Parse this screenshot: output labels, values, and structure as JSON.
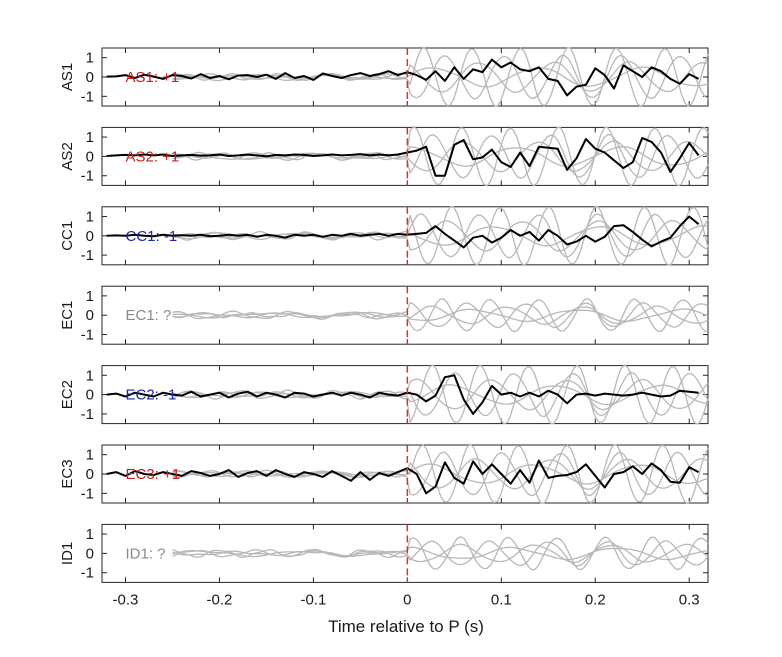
{
  "chart_data": {
    "type": "line",
    "xlabel": "Time relative to P (s)",
    "xlim": [
      -0.325,
      0.32
    ],
    "xticks": [
      -0.3,
      -0.2,
      -0.1,
      0,
      0.1,
      0.2,
      0.3
    ],
    "xtick_labels": [
      "-0.3",
      "-0.2",
      "-0.1",
      "0",
      "0.1",
      "0.2",
      "0.3"
    ],
    "ylim": [
      -1.5,
      1.5
    ],
    "yticks": [
      1,
      0,
      -1
    ],
    "ytick_labels": [
      "1",
      "0",
      "-1"
    ],
    "p_marker_x": 0,
    "colors": {
      "main": "#000000",
      "background": "#b8b8b8",
      "marker": "#e0302a",
      "positive": "#c81e1e",
      "negative": "#1e28a0",
      "unknown": "#8a8a8a"
    },
    "panels": [
      {
        "name": "AS1",
        "ylabel": "AS1",
        "annotation": "AS1: +1",
        "polarity": "positive",
        "x": [
          -0.32,
          -0.31,
          -0.3,
          -0.29,
          -0.28,
          -0.27,
          -0.26,
          -0.25,
          -0.24,
          -0.23,
          -0.22,
          -0.21,
          -0.2,
          -0.19,
          -0.18,
          -0.17,
          -0.16,
          -0.15,
          -0.14,
          -0.13,
          -0.12,
          -0.11,
          -0.1,
          -0.09,
          -0.08,
          -0.07,
          -0.06,
          -0.05,
          -0.04,
          -0.03,
          -0.02,
          -0.01,
          0,
          0.01,
          0.02,
          0.03,
          0.04,
          0.05,
          0.06,
          0.07,
          0.08,
          0.09,
          0.1,
          0.11,
          0.12,
          0.13,
          0.14,
          0.15,
          0.16,
          0.17,
          0.18,
          0.19,
          0.2,
          0.21,
          0.22,
          0.23,
          0.24,
          0.25,
          0.26,
          0.27,
          0.28,
          0.29,
          0.3,
          0.31
        ],
        "y": [
          0.02,
          0.03,
          0.1,
          -0.05,
          0.12,
          0.02,
          -0.1,
          0.1,
          0.05,
          -0.08,
          0.15,
          -0.05,
          0.05,
          -0.12,
          0.08,
          0.1,
          0.0,
          0.12,
          -0.1,
          0.2,
          -0.05,
          0.05,
          -0.15,
          0.18,
          0.05,
          -0.05,
          0.1,
          0.2,
          0.05,
          0.15,
          0.3,
          0.1,
          0.25,
          0.1,
          -0.15,
          0.3,
          -0.2,
          0.5,
          -0.1,
          0.4,
          0.25,
          0.9,
          0.5,
          0.75,
          0.4,
          0.3,
          0.5,
          -0.1,
          -0.2,
          -0.95,
          -0.5,
          -0.4,
          0.45,
          0.1,
          -0.6,
          0.6,
          0.3,
          0.0,
          0.5,
          0.3,
          -0.1,
          -0.35,
          0.15,
          -0.1
        ]
      },
      {
        "name": "AS2",
        "ylabel": "AS2",
        "annotation": "AS2: +1",
        "polarity": "positive",
        "x": [
          -0.32,
          -0.31,
          -0.3,
          -0.29,
          -0.28,
          -0.27,
          -0.26,
          -0.25,
          -0.24,
          -0.23,
          -0.22,
          -0.21,
          -0.2,
          -0.19,
          -0.18,
          -0.17,
          -0.16,
          -0.15,
          -0.14,
          -0.13,
          -0.12,
          -0.11,
          -0.1,
          -0.09,
          -0.08,
          -0.07,
          -0.06,
          -0.05,
          -0.04,
          -0.03,
          -0.02,
          -0.01,
          0,
          0.01,
          0.02,
          0.03,
          0.04,
          0.05,
          0.06,
          0.07,
          0.08,
          0.09,
          0.1,
          0.11,
          0.12,
          0.13,
          0.14,
          0.15,
          0.16,
          0.17,
          0.18,
          0.19,
          0.2,
          0.21,
          0.22,
          0.23,
          0.24,
          0.25,
          0.26,
          0.27,
          0.28,
          0.29,
          0.3,
          0.31
        ],
        "y": [
          0.02,
          0.05,
          0.08,
          0.05,
          0.1,
          0.05,
          0.1,
          0.02,
          0.05,
          0.08,
          0.03,
          0.05,
          0.1,
          0.02,
          0.05,
          0.1,
          0.05,
          0.0,
          0.08,
          0.05,
          0.1,
          0.08,
          0.02,
          0.05,
          0.1,
          0.05,
          0.08,
          0.12,
          0.05,
          0.1,
          0.05,
          0.1,
          0.2,
          0.3,
          0.5,
          -1.0,
          -1.0,
          0.6,
          0.85,
          -0.15,
          -0.05,
          0.35,
          -0.3,
          -0.55,
          0.2,
          -0.5,
          0.5,
          0.45,
          0.4,
          -0.7,
          -0.1,
          0.9,
          0.4,
          0.2,
          -0.2,
          -0.6,
          -0.3,
          0.95,
          0.75,
          0.2,
          -0.8,
          -0.1,
          0.7,
          0.05
        ]
      },
      {
        "name": "CC1",
        "ylabel": "CC1",
        "annotation": "CC1: -1",
        "polarity": "negative",
        "x": [
          -0.32,
          -0.31,
          -0.3,
          -0.29,
          -0.28,
          -0.27,
          -0.26,
          -0.25,
          -0.24,
          -0.23,
          -0.22,
          -0.21,
          -0.2,
          -0.19,
          -0.18,
          -0.17,
          -0.16,
          -0.15,
          -0.14,
          -0.13,
          -0.12,
          -0.11,
          -0.1,
          -0.09,
          -0.08,
          -0.07,
          -0.06,
          -0.05,
          -0.04,
          -0.03,
          -0.02,
          -0.01,
          0,
          0.01,
          0.02,
          0.03,
          0.04,
          0.05,
          0.06,
          0.07,
          0.08,
          0.09,
          0.1,
          0.11,
          0.12,
          0.13,
          0.14,
          0.15,
          0.16,
          0.17,
          0.18,
          0.19,
          0.2,
          0.21,
          0.22,
          0.23,
          0.24,
          0.25,
          0.26,
          0.27,
          0.28,
          0.29,
          0.3,
          0.31
        ],
        "y": [
          0.0,
          0.02,
          0.0,
          0.05,
          0.0,
          -0.02,
          0.05,
          0.0,
          0.03,
          0.0,
          0.05,
          -0.02,
          0.0,
          0.05,
          0.0,
          0.05,
          -0.05,
          0.05,
          0.0,
          -0.1,
          0.05,
          0.0,
          0.05,
          -0.05,
          0.05,
          0.0,
          0.1,
          0.0,
          0.05,
          0.1,
          0.0,
          0.1,
          0.05,
          0.1,
          0.15,
          0.5,
          0.1,
          -0.25,
          -0.6,
          -0.1,
          0.0,
          -0.35,
          -0.1,
          0.3,
          0.0,
          0.2,
          -0.25,
          0.3,
          0.0,
          -0.45,
          -0.3,
          0.0,
          -0.3,
          -0.05,
          0.5,
          0.55,
          0.2,
          -0.2,
          -0.55,
          -0.3,
          -0.1,
          0.5,
          1.0,
          0.6
        ]
      },
      {
        "name": "EC1",
        "ylabel": "EC1",
        "annotation": "EC1: ?",
        "polarity": "unknown",
        "x": [],
        "y": []
      },
      {
        "name": "EC2",
        "ylabel": "EC2",
        "annotation": "EC2: -1",
        "polarity": "negative",
        "x": [
          -0.32,
          -0.31,
          -0.3,
          -0.29,
          -0.28,
          -0.27,
          -0.26,
          -0.25,
          -0.24,
          -0.23,
          -0.22,
          -0.21,
          -0.2,
          -0.19,
          -0.18,
          -0.17,
          -0.16,
          -0.15,
          -0.14,
          -0.13,
          -0.12,
          -0.11,
          -0.1,
          -0.09,
          -0.08,
          -0.07,
          -0.06,
          -0.05,
          -0.04,
          -0.03,
          -0.02,
          -0.01,
          0,
          0.01,
          0.02,
          0.03,
          0.04,
          0.05,
          0.06,
          0.07,
          0.08,
          0.09,
          0.1,
          0.11,
          0.12,
          0.13,
          0.14,
          0.15,
          0.16,
          0.17,
          0.18,
          0.19,
          0.2,
          0.21,
          0.22,
          0.23,
          0.24,
          0.25,
          0.26,
          0.27,
          0.28,
          0.29,
          0.3,
          0.31
        ],
        "y": [
          0.0,
          0.05,
          -0.1,
          0.1,
          0.0,
          -0.1,
          0.1,
          0.0,
          -0.05,
          0.15,
          -0.1,
          0.0,
          0.1,
          -0.15,
          0.05,
          0.15,
          -0.1,
          0.1,
          0.0,
          -0.15,
          0.1,
          0.05,
          -0.1,
          0.0,
          0.1,
          -0.05,
          0.1,
          0.0,
          -0.15,
          0.1,
          0.0,
          -0.05,
          0.1,
          0.0,
          -0.35,
          -0.05,
          0.9,
          1.0,
          -0.25,
          -1.0,
          -0.4,
          0.45,
          0.0,
          0.1,
          -0.1,
          0.1,
          -0.1,
          0.2,
          0.0,
          -0.45,
          0.0,
          0.05,
          -0.05,
          0.05,
          0.0,
          -0.05,
          0.0,
          0.1,
          0.0,
          -0.1,
          -0.05,
          0.2,
          0.15,
          0.1
        ]
      },
      {
        "name": "EC3",
        "ylabel": "EC3",
        "annotation": "EC3: +1",
        "polarity": "positive",
        "x": [
          -0.32,
          -0.31,
          -0.3,
          -0.29,
          -0.28,
          -0.27,
          -0.26,
          -0.25,
          -0.24,
          -0.23,
          -0.22,
          -0.21,
          -0.2,
          -0.19,
          -0.18,
          -0.17,
          -0.16,
          -0.15,
          -0.14,
          -0.13,
          -0.12,
          -0.11,
          -0.1,
          -0.09,
          -0.08,
          -0.07,
          -0.06,
          -0.05,
          -0.04,
          -0.03,
          -0.02,
          -0.01,
          0,
          0.01,
          0.02,
          0.03,
          0.04,
          0.05,
          0.06,
          0.07,
          0.08,
          0.09,
          0.1,
          0.11,
          0.12,
          0.13,
          0.14,
          0.15,
          0.16,
          0.17,
          0.18,
          0.19,
          0.2,
          0.21,
          0.22,
          0.23,
          0.24,
          0.25,
          0.26,
          0.27,
          0.28,
          0.29,
          0.3,
          0.31
        ],
        "y": [
          0.0,
          0.1,
          -0.1,
          0.15,
          0.0,
          -0.05,
          0.1,
          0.0,
          -0.1,
          0.15,
          0.05,
          -0.1,
          0.0,
          0.2,
          -0.15,
          0.05,
          0.15,
          -0.1,
          0.2,
          0.0,
          -0.15,
          0.1,
          0.0,
          -0.15,
          0.15,
          -0.1,
          -0.35,
          0.1,
          -0.3,
          0.05,
          -0.1,
          0.1,
          0.3,
          0.0,
          -1.0,
          -0.65,
          0.6,
          -0.2,
          -0.5,
          0.65,
          0.0,
          0.5,
          0.0,
          -0.5,
          0.2,
          -0.45,
          0.7,
          -0.2,
          -0.1,
          -0.05,
          0.1,
          0.5,
          -0.1,
          -0.7,
          0.0,
          0.1,
          0.4,
          0.0,
          0.55,
          0.2,
          -0.4,
          -0.45,
          0.35,
          0.1
        ]
      },
      {
        "name": "ID1",
        "ylabel": "ID1",
        "annotation": "ID1: ?",
        "polarity": "unknown",
        "x": [],
        "y": []
      }
    ]
  }
}
